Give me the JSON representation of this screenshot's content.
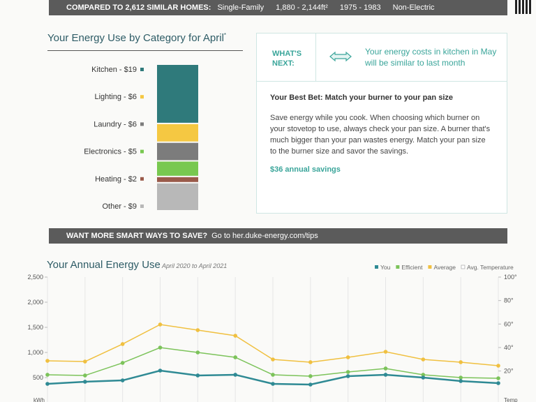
{
  "banner": {
    "heading": "COMPARED TO 2,612 SIMILAR HOMES:",
    "home_type": "Single-Family",
    "size": "1,880 - 2,144ft²",
    "years": "1975 - 1983",
    "heating": "Non-Electric"
  },
  "category_chart": {
    "type": "stacked-bar",
    "title": "Your Energy Use by Category for April",
    "title_mark": "*",
    "labels": [
      "Kitchen - $19",
      "Lighting - $6",
      "Laundry - $6",
      "Electronics - $5",
      "Heating - $2",
      "Other - $9"
    ],
    "values": [
      19,
      6,
      6,
      5,
      2,
      9
    ],
    "colors": [
      "#2f7a7b",
      "#f5c842",
      "#7c7c7c",
      "#78c850",
      "#9a5a4a",
      "#b8b8b8"
    ]
  },
  "whats_next": {
    "label": "WHAT'S NEXT:",
    "message": "Your energy costs in kitchen in May will be similar to last month",
    "tip_title": "Your Best Bet: Match your burner to your pan size",
    "tip_body": "Save energy while you cook. When choosing which burner on your stovetop to use, always check your pan size. A burner that's much bigger than your pan wastes energy. Match your pan size to the burner size and savor the savings.",
    "savings": "$36 annual savings"
  },
  "tips_banner": {
    "heading": "WANT MORE SMART WAYS TO SAVE?",
    "text": "Go to her.duke-energy.com/tips"
  },
  "chart_data": {
    "type": "line",
    "title": "Your Annual Energy Use",
    "subtitle": "April 2020 to April 2021",
    "y_label": "kWh",
    "y2_label": "Temp",
    "series": [
      {
        "name": "Average",
        "color": "#f0c040",
        "values": [
          833,
          819,
          1167,
          1556,
          1444,
          1333,
          861,
          806,
          903,
          1014,
          861,
          806,
          736
        ]
      },
      {
        "name": "Efficient",
        "color": "#7cc35a",
        "values": [
          556,
          542,
          792,
          1097,
          1000,
          903,
          556,
          528,
          611,
          681,
          556,
          500,
          486
        ]
      },
      {
        "name": "You",
        "color": "#2f8a94",
        "values": [
          375,
          417,
          444,
          639,
          542,
          556,
          375,
          361,
          528,
          556,
          500,
          431,
          389
        ]
      }
    ],
    "legend": [
      "You",
      "Efficient",
      "Average",
      "Avg. Temperature"
    ],
    "ylim": [
      0,
      2500
    ],
    "yticks": [
      500,
      {
        "value": 1000,
        "label": "1,000"
      },
      {
        "value": 1500,
        "label": "1,500"
      },
      {
        "value": 2000,
        "label": "2,000"
      },
      {
        "value": 2500,
        "label": "2,500"
      }
    ],
    "y2lim": [
      -7,
      100
    ],
    "y2ticks": [
      {
        "value": 20,
        "label": "20°"
      },
      {
        "value": 40,
        "label": "40°"
      },
      {
        "value": 60,
        "label": "60°"
      },
      {
        "value": 80,
        "label": "80°"
      },
      {
        "value": 100,
        "label": "100°"
      }
    ]
  }
}
